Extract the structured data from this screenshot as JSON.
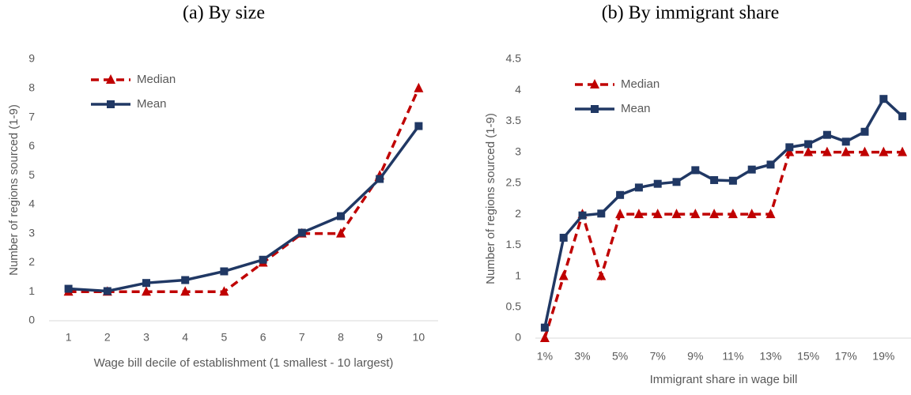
{
  "chart_data": [
    {
      "type": "line",
      "title": "(a) By size",
      "x_label": "Wage bill decile of establishment (1 smallest - 10 largest)",
      "y_label": "Number of regions sourced (1-9)",
      "categories": [
        "1",
        "2",
        "3",
        "4",
        "5",
        "6",
        "7",
        "8",
        "9",
        "10"
      ],
      "series": [
        {
          "name": "Median",
          "color": "#c00000",
          "style": "dashed",
          "marker": "triangle",
          "values": [
            1,
            1,
            1,
            1,
            1,
            2,
            3,
            3,
            5,
            8
          ]
        },
        {
          "name": "Mean",
          "color": "#203864",
          "style": "solid",
          "marker": "square",
          "values": [
            1.1,
            1.02,
            1.3,
            1.4,
            1.7,
            2.1,
            3.03,
            3.6,
            4.88,
            6.7
          ]
        }
      ],
      "ylim": [
        0,
        9
      ],
      "yticks": [
        0,
        1,
        2,
        3,
        4,
        5,
        6,
        7,
        8,
        9
      ],
      "legend": "upper left"
    },
    {
      "type": "line",
      "title": "(b) By immigrant share",
      "x_label": "Immigrant share in wage bill",
      "y_label": "Number of regions sourced (1-9)",
      "categories": [
        "1%",
        null,
        "3%",
        null,
        "5%",
        null,
        "7%",
        null,
        "9%",
        null,
        "11%",
        null,
        "13%",
        null,
        "15%",
        null,
        "17%",
        null,
        "19%",
        null
      ],
      "series": [
        {
          "name": "Median",
          "color": "#c00000",
          "style": "dashed",
          "marker": "triangle",
          "values": [
            0,
            1,
            2,
            1,
            2,
            2,
            2,
            2,
            2,
            2,
            2,
            2,
            2,
            3,
            3,
            3,
            3,
            3,
            3,
            3
          ]
        },
        {
          "name": "Mean",
          "color": "#203864",
          "style": "solid",
          "marker": "square",
          "values": [
            0.17,
            1.62,
            1.98,
            2.01,
            2.31,
            2.43,
            2.49,
            2.52,
            2.71,
            2.55,
            2.54,
            2.72,
            2.8,
            3.08,
            3.13,
            3.28,
            3.17,
            3.33,
            3.86,
            3.58
          ]
        }
      ],
      "ylim": [
        0,
        4.5
      ],
      "yticks": [
        0,
        0.5,
        1,
        1.5,
        2,
        2.5,
        3,
        3.5,
        4,
        4.5
      ],
      "legend": "upper left"
    }
  ]
}
